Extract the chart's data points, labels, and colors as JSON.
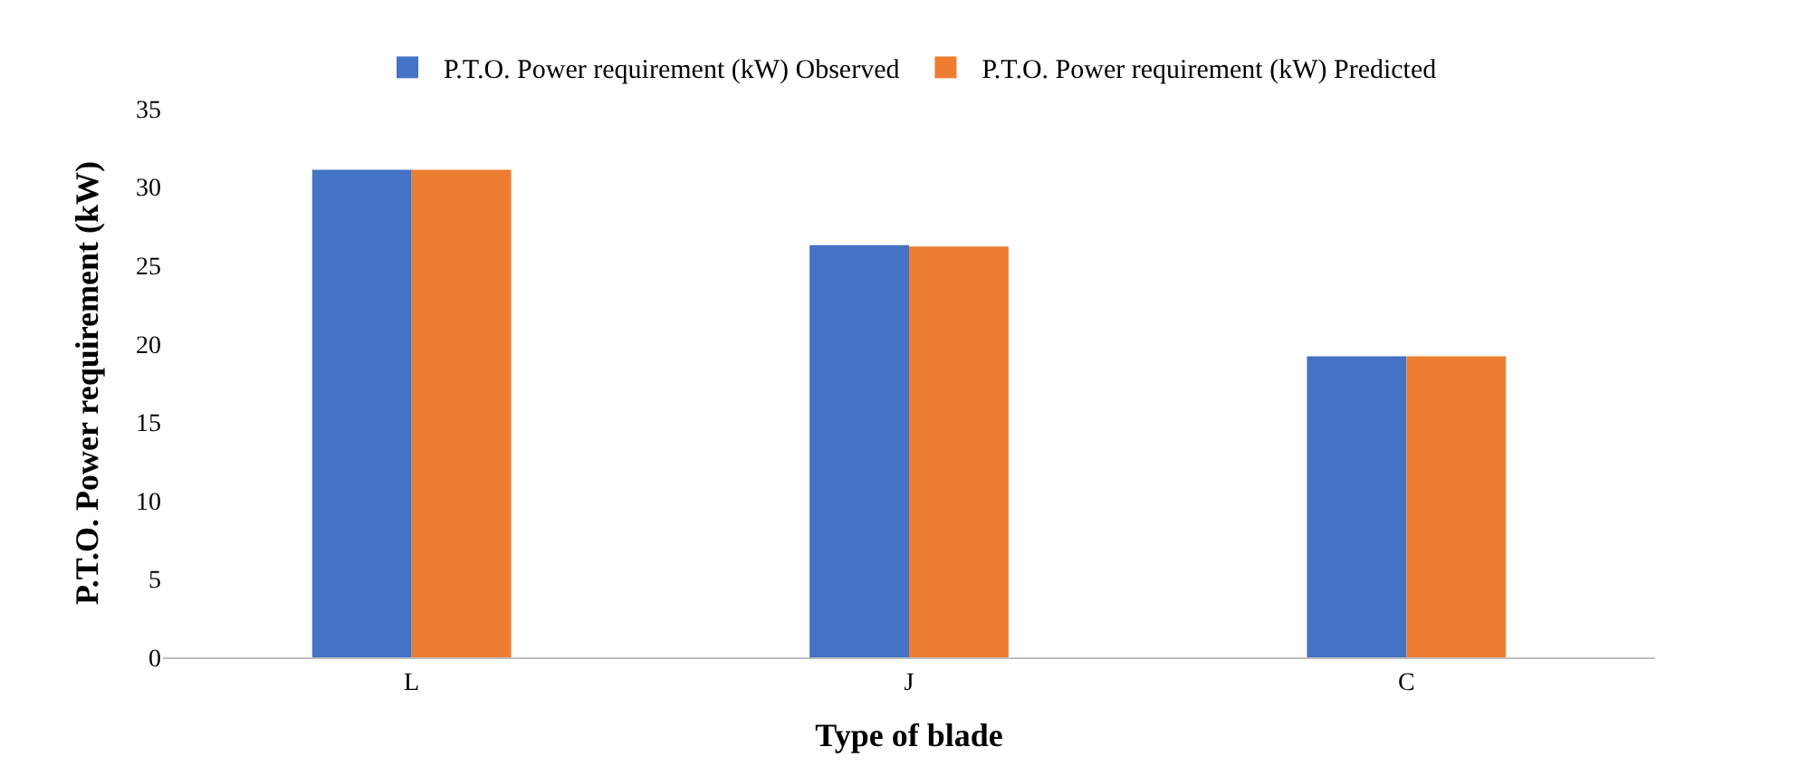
{
  "chart_data": {
    "type": "bar",
    "xlabel": "Type of blade",
    "ylabel": "P.T.O. Power requirement (kW)",
    "categories": [
      "L",
      "J",
      "C"
    ],
    "series": [
      {
        "name": "P.T.O. Power requirement (kW) Observed",
        "color": "#4472c4",
        "values": [
          31.1,
          26.3,
          19.2
        ]
      },
      {
        "name": "P.T.O. Power requirement (kW) Predicted",
        "color": "#ed7d31",
        "values": [
          31.1,
          26.2,
          19.2
        ]
      }
    ],
    "ylim": [
      0,
      35
    ],
    "yticks": [
      0,
      5,
      10,
      15,
      20,
      25,
      30,
      35
    ],
    "grid": false,
    "legend": "top"
  }
}
